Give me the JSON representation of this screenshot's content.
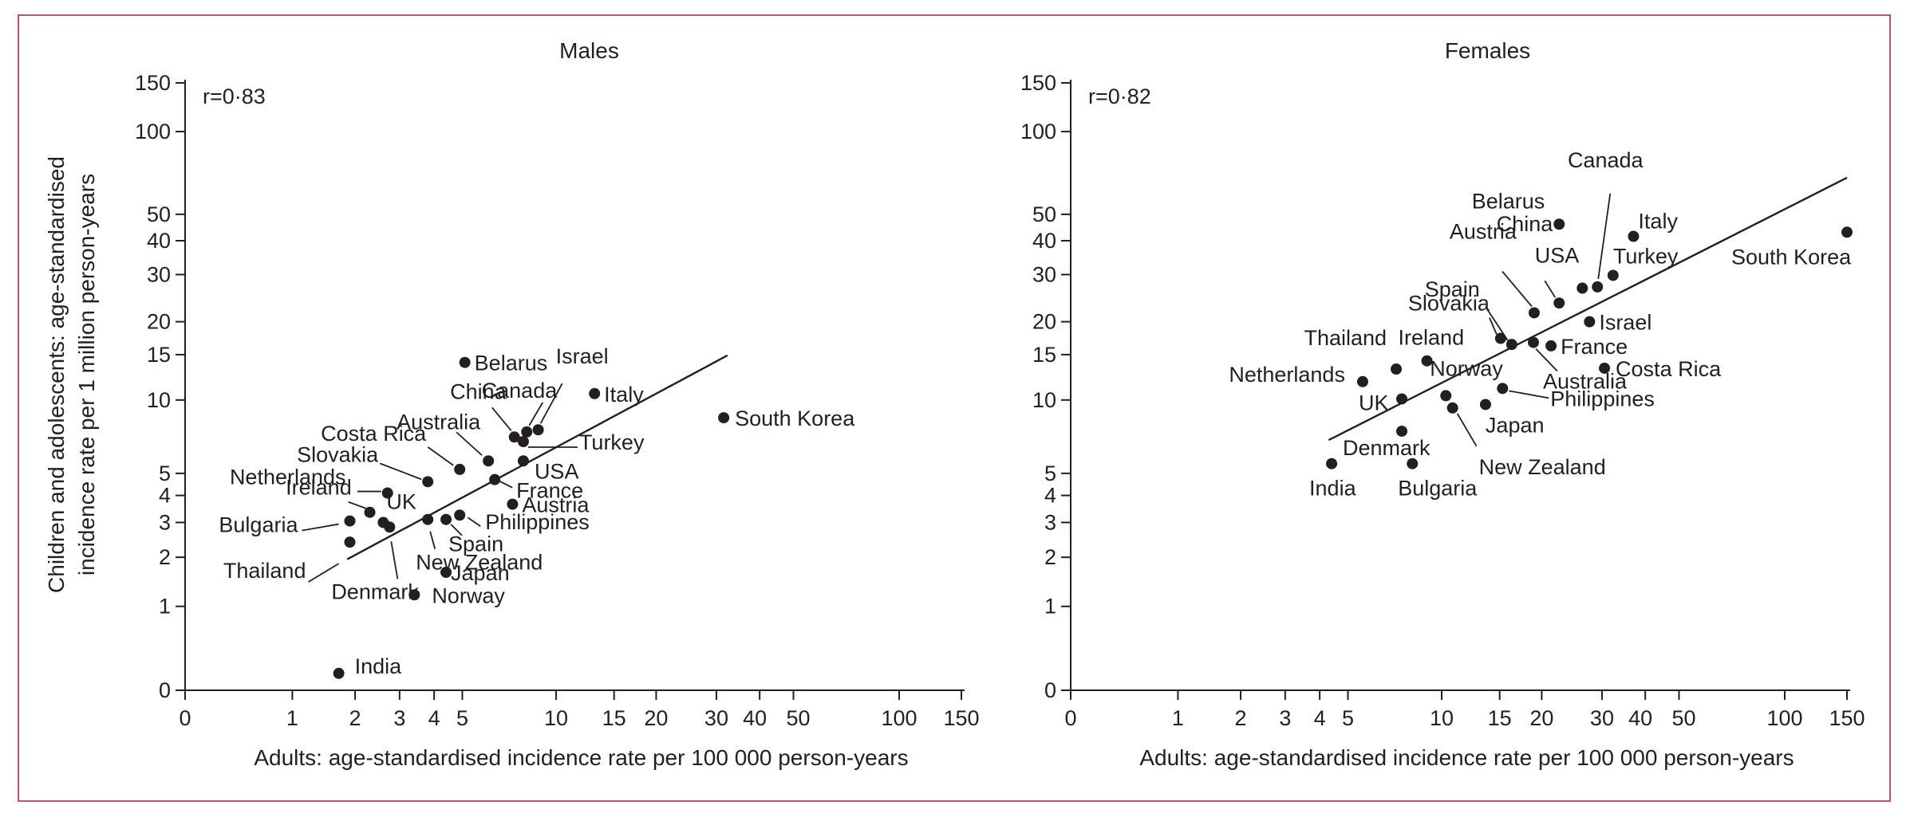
{
  "chart_data": [
    {
      "type": "scatter",
      "title": "Males",
      "r_label": "r=0·83",
      "xlabel": "Adults: age-standardised incidence rate per 100 000 person-years",
      "ylabel_lines": [
        "Children and adolescents: age-standardised",
        "incidence rate per 1 million person-years"
      ],
      "x_scale": "log(x+1)",
      "y_scale": "log(y+1)",
      "xlim": [
        0,
        150
      ],
      "ylim": [
        0,
        150
      ],
      "x_ticks": [
        0,
        1,
        2,
        3,
        4,
        5,
        10,
        15,
        20,
        30,
        40,
        50,
        100,
        150
      ],
      "x_tick_labels": [
        "0",
        "1",
        "2",
        "3",
        "4",
        "5",
        "10",
        "15",
        "20",
        "30",
        "40",
        "50",
        "100",
        "150"
      ],
      "y_ticks": [
        0,
        1,
        2,
        3,
        4,
        5,
        10,
        15,
        20,
        30,
        40,
        50,
        100,
        150
      ],
      "y_tick_labels": [
        "0",
        "1",
        "2",
        "3",
        "4",
        "5",
        "10",
        "15",
        "20",
        "30",
        "40",
        "50",
        "100",
        "150"
      ],
      "regression": {
        "x": [
          1.85,
          32.3
        ],
        "y": [
          1.95,
          14.9
        ]
      },
      "points": [
        {
          "country": "India",
          "x": 1.7,
          "y": 0.15
        },
        {
          "country": "Thailand",
          "x": 1.9,
          "y": 2.4
        },
        {
          "country": "Bulgaria",
          "x": 1.9,
          "y": 3.05
        },
        {
          "country": "Netherlands",
          "x": 2.3,
          "y": 3.35
        },
        {
          "country": "UK",
          "x": 2.6,
          "y": 3.0
        },
        {
          "country": "Denmark",
          "x": 2.75,
          "y": 2.85
        },
        {
          "country": "Ireland",
          "x": 2.7,
          "y": 4.1
        },
        {
          "country": "Slovakia",
          "x": 3.8,
          "y": 4.6
        },
        {
          "country": "Costa Rica",
          "x": 4.9,
          "y": 5.2
        },
        {
          "country": "Norway",
          "x": 3.4,
          "y": 1.2
        },
        {
          "country": "New Zealand",
          "x": 3.8,
          "y": 3.1
        },
        {
          "country": "Japan",
          "x": 4.4,
          "y": 1.65
        },
        {
          "country": "Spain",
          "x": 4.4,
          "y": 3.1
        },
        {
          "country": "Philippines",
          "x": 4.9,
          "y": 3.25
        },
        {
          "country": "Belarus",
          "x": 5.1,
          "y": 14.0
        },
        {
          "country": "Australia",
          "x": 6.1,
          "y": 5.65
        },
        {
          "country": "France",
          "x": 6.4,
          "y": 4.7
        },
        {
          "country": "Austria",
          "x": 7.3,
          "y": 3.65
        },
        {
          "country": "China",
          "x": 7.4,
          "y": 7.1
        },
        {
          "country": "USA",
          "x": 7.9,
          "y": 5.65
        },
        {
          "country": "Turkey",
          "x": 7.9,
          "y": 6.8
        },
        {
          "country": "Canada",
          "x": 8.1,
          "y": 7.45
        },
        {
          "country": "Israel",
          "x": 8.8,
          "y": 7.6
        },
        {
          "country": "Italy",
          "x": 13.1,
          "y": 10.6
        },
        {
          "country": "South Korea",
          "x": 31.5,
          "y": 8.5
        }
      ]
    },
    {
      "type": "scatter",
      "title": "Females",
      "r_label": "r=0·82",
      "xlabel": "Adults: age-standardised incidence rate per 100 000 person-years",
      "x_scale": "log(x+1)",
      "y_scale": "log(y+1)",
      "xlim": [
        0,
        150
      ],
      "ylim": [
        0,
        150
      ],
      "x_ticks": [
        0,
        1,
        2,
        3,
        4,
        5,
        10,
        15,
        20,
        30,
        40,
        50,
        100,
        150
      ],
      "x_tick_labels": [
        "0",
        "1",
        "2",
        "3",
        "4",
        "5",
        "10",
        "15",
        "20",
        "30",
        "40",
        "50",
        "100",
        "150"
      ],
      "y_ticks": [
        0,
        1,
        2,
        3,
        4,
        5,
        10,
        15,
        20,
        30,
        40,
        50,
        100,
        150
      ],
      "y_tick_labels": [
        "0",
        "1",
        "2",
        "3",
        "4",
        "5",
        "10",
        "15",
        "20",
        "30",
        "40",
        "50",
        "100",
        "150"
      ],
      "regression": {
        "x": [
          4.3,
          150
        ],
        "y": [
          6.9,
          68.0
        ]
      },
      "points": [
        {
          "country": "India",
          "x": 4.4,
          "y": 5.5
        },
        {
          "country": "Netherlands",
          "x": 5.6,
          "y": 11.8
        },
        {
          "country": "Thailand",
          "x": 7.2,
          "y": 13.2
        },
        {
          "country": "UK",
          "x": 7.5,
          "y": 10.1
        },
        {
          "country": "Denmark",
          "x": 7.5,
          "y": 7.5
        },
        {
          "country": "Bulgaria",
          "x": 8.1,
          "y": 5.5
        },
        {
          "country": "Ireland",
          "x": 9.0,
          "y": 14.2
        },
        {
          "country": "Norway",
          "x": 10.3,
          "y": 10.4
        },
        {
          "country": "New Zealand",
          "x": 10.8,
          "y": 9.3
        },
        {
          "country": "Japan",
          "x": 13.6,
          "y": 9.6
        },
        {
          "country": "Philippines",
          "x": 15.3,
          "y": 11.1
        },
        {
          "country": "Slovakia",
          "x": 15.1,
          "y": 17.3
        },
        {
          "country": "Spain",
          "x": 16.3,
          "y": 16.4
        },
        {
          "country": "France",
          "x": 21.3,
          "y": 16.2
        },
        {
          "country": "Australia",
          "x": 18.9,
          "y": 16.7
        },
        {
          "country": "Austria",
          "x": 19.0,
          "y": 21.6
        },
        {
          "country": "China",
          "x": 22.5,
          "y": 23.5
        },
        {
          "country": "Belarus",
          "x": 22.5,
          "y": 46.0
        },
        {
          "country": "USA",
          "x": 26.3,
          "y": 26.7
        },
        {
          "country": "Canada",
          "x": 29.1,
          "y": 27.0
        },
        {
          "country": "Israel",
          "x": 27.6,
          "y": 20.0
        },
        {
          "country": "Turkey",
          "x": 32.3,
          "y": 29.8
        },
        {
          "country": "Costa Rica",
          "x": 30.5,
          "y": 13.3
        },
        {
          "country": "Italy",
          "x": 37.0,
          "y": 41.5
        },
        {
          "country": "South Korea",
          "x": 150,
          "y": 43.0
        }
      ]
    }
  ]
}
